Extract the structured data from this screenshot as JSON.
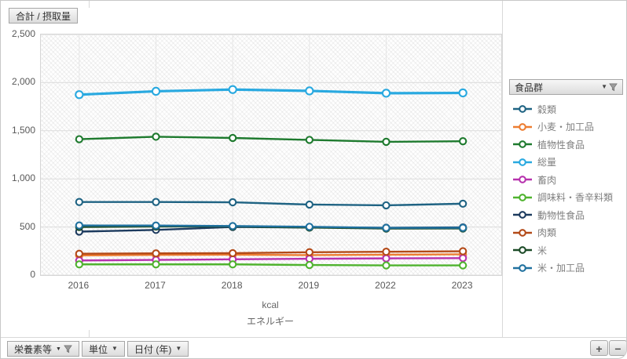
{
  "value_field_button": "合計 / 摂取量",
  "legend": {
    "field_button": "食品群",
    "filter_icon": "funnel-icon",
    "dropdown_icon": "chevron-down-icon"
  },
  "bottom_bar": {
    "fields": [
      {
        "label": "栄養素等",
        "icon": "filter"
      },
      {
        "label": "単位",
        "icon": "dropdown"
      },
      {
        "label": "日付 (年)",
        "icon": "dropdown"
      }
    ],
    "zoom_in_label": "+",
    "zoom_out_label": "−"
  },
  "chart_data": {
    "type": "line",
    "x": [
      "2016",
      "2017",
      "2018",
      "2019",
      "2022",
      "2023"
    ],
    "series": [
      {
        "name": "穀類",
        "color": "#1F6383",
        "values": [
          760,
          760,
          757,
          733,
          725,
          742
        ]
      },
      {
        "name": "小麦・加工品",
        "color": "#ED7D31",
        "values": [
          205,
          210,
          212,
          208,
          212,
          216
        ]
      },
      {
        "name": "植物性食品",
        "color": "#1E7A2E",
        "values": [
          1412,
          1438,
          1425,
          1405,
          1385,
          1391
        ]
      },
      {
        "name": "総量",
        "color": "#29A9E0",
        "values": [
          1875,
          1910,
          1928,
          1914,
          1890,
          1893
        ]
      },
      {
        "name": "畜肉",
        "color": "#B732AE",
        "values": [
          152,
          158,
          164,
          170,
          174,
          177
        ]
      },
      {
        "name": "調味料・香辛料類",
        "color": "#4FB32E",
        "values": [
          112,
          112,
          112,
          105,
          101,
          101
        ]
      },
      {
        "name": "動物性食品",
        "color": "#1C3A5E",
        "values": [
          452,
          470,
          500,
          495,
          492,
          496
        ]
      },
      {
        "name": "肉類",
        "color": "#B34A18",
        "values": [
          222,
          226,
          228,
          238,
          243,
          248
        ]
      },
      {
        "name": "米",
        "color": "#1B4A27",
        "values": [
          500,
          505,
          505,
          494,
          484,
          485
        ]
      },
      {
        "name": "米・加工品",
        "color": "#20719F",
        "values": [
          516,
          515,
          510,
          502,
          491,
          492
        ]
      }
    ],
    "ylim": [
      0,
      2500
    ],
    "ytick_labels": [
      "0",
      "500",
      "1,000",
      "1,500",
      "2,000",
      "2,500"
    ],
    "ytick_values": [
      0,
      500,
      1000,
      1500,
      2000,
      2500
    ],
    "unit_label": "kcal",
    "axis_title": "エネルギー",
    "legend_position": "right",
    "grid": true,
    "plot_pattern": "diagonal-hatch",
    "highlight_series": "総量"
  }
}
